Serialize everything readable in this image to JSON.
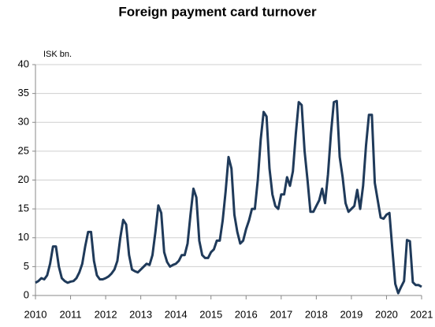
{
  "chart_data": {
    "type": "line",
    "title": "Foreign payment card turnover",
    "y_label": "ISK bn.",
    "categories": [
      "2010",
      null,
      null,
      null,
      null,
      null,
      null,
      null,
      null,
      null,
      null,
      null,
      "2011",
      null,
      null,
      null,
      null,
      null,
      null,
      null,
      null,
      null,
      null,
      null,
      "2012",
      null,
      null,
      null,
      null,
      null,
      null,
      null,
      null,
      null,
      null,
      null,
      "2013",
      null,
      null,
      null,
      null,
      null,
      null,
      null,
      null,
      null,
      null,
      null,
      "2014",
      null,
      null,
      null,
      null,
      null,
      null,
      null,
      null,
      null,
      null,
      null,
      "2015",
      null,
      null,
      null,
      null,
      null,
      null,
      null,
      null,
      null,
      null,
      null,
      "2016",
      null,
      null,
      null,
      null,
      null,
      null,
      null,
      null,
      null,
      null,
      null,
      "2017",
      null,
      null,
      null,
      null,
      null,
      null,
      null,
      null,
      null,
      null,
      null,
      "2018",
      null,
      null,
      null,
      null,
      null,
      null,
      null,
      null,
      null,
      null,
      null,
      "2019",
      null,
      null,
      null,
      null,
      null,
      null,
      null,
      null,
      null,
      null,
      null,
      "2020",
      null,
      null,
      null,
      null,
      null,
      null,
      null,
      null,
      null,
      null,
      null,
      "2021"
    ],
    "series": [
      {
        "color": "#1f3a5a",
        "values": [
          2.2,
          2.5,
          3.0,
          2.8,
          3.5,
          5.5,
          8.5,
          8.5,
          5.0,
          3.0,
          2.5,
          2.2,
          2.4,
          2.5,
          3.0,
          4.0,
          5.5,
          8.5,
          11.0,
          11.0,
          6.0,
          3.5,
          2.8,
          2.8,
          3.0,
          3.3,
          3.8,
          4.5,
          6.0,
          10.0,
          13.1,
          12.3,
          7.0,
          4.5,
          4.2,
          4.0,
          4.5,
          5.0,
          5.5,
          5.3,
          7.0,
          11.0,
          15.6,
          14.3,
          7.5,
          5.8,
          5.0,
          5.3,
          5.5,
          6.0,
          7.0,
          7.0,
          9.0,
          14.0,
          18.5,
          17.0,
          9.5,
          7.0,
          6.5,
          6.5,
          7.5,
          8.0,
          9.5,
          9.5,
          13.0,
          18.0,
          24.0,
          22.0,
          14.0,
          11.0,
          9.0,
          9.5,
          11.5,
          13.0,
          15.0,
          15.0,
          20.0,
          27.0,
          31.8,
          31.0,
          22.0,
          17.5,
          15.5,
          15.0,
          17.5,
          17.5,
          20.5,
          19.0,
          21.5,
          28.0,
          33.5,
          33.0,
          25.0,
          20.0,
          14.5,
          14.5,
          15.5,
          16.5,
          18.5,
          16.0,
          21.0,
          28.0,
          33.5,
          33.7,
          24.0,
          20.5,
          16.0,
          14.5,
          15.0,
          15.5,
          18.3,
          15.0,
          19.0,
          26.0,
          31.3,
          31.3,
          19.5,
          16.5,
          13.5,
          13.3,
          14.0,
          14.3,
          8.0,
          2.0,
          0.4,
          1.5,
          2.5,
          9.6,
          9.4,
          2.3,
          1.8,
          1.8,
          1.5
        ]
      }
    ],
    "ylim": [
      0,
      40
    ],
    "yticks": [
      0,
      5,
      10,
      15,
      20,
      25,
      30,
      35,
      40
    ],
    "grid": true
  }
}
